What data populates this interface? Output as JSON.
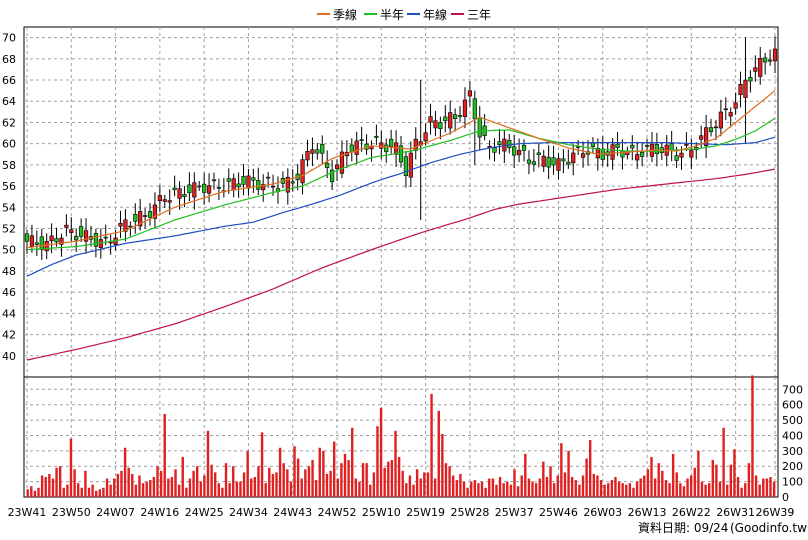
{
  "chart_data": {
    "type": "candlestick",
    "legend": [
      {
        "label": "季線",
        "color": "#e07020"
      },
      {
        "label": "半年",
        "color": "#20c020"
      },
      {
        "label": "年線",
        "color": "#2050c0"
      },
      {
        "label": "三年",
        "color": "#c01050"
      }
    ],
    "price_axis": {
      "min": 38,
      "max": 71,
      "ticks": [
        "40",
        "42",
        "44",
        "46",
        "48",
        "50",
        "52",
        "54",
        "56",
        "58",
        "60",
        "62",
        "64",
        "66",
        "68",
        "70"
      ]
    },
    "volume_axis": {
      "min": 0,
      "max": 780,
      "ticks": [
        "100",
        "200",
        "300",
        "400",
        "500",
        "600",
        "700"
      ]
    },
    "x_ticks": [
      {
        "label": "23W41",
        "week": 0
      },
      {
        "label": "23W50",
        "week": 9
      },
      {
        "label": "24W07",
        "week": 18
      },
      {
        "label": "24W16",
        "week": 27
      },
      {
        "label": "24W25",
        "week": 36
      },
      {
        "label": "24W34",
        "week": 45
      },
      {
        "label": "24W43",
        "week": 54
      },
      {
        "label": "24W52",
        "week": 63
      },
      {
        "label": "25W10",
        "week": 72
      },
      {
        "label": "25W19",
        "week": 81
      },
      {
        "label": "25W28",
        "week": 90
      },
      {
        "label": "25W37",
        "week": 99
      },
      {
        "label": "25W46",
        "week": 108
      },
      {
        "label": "26W03",
        "week": 117
      },
      {
        "label": "26W13",
        "week": 126
      },
      {
        "label": "26W22",
        "week": 135
      },
      {
        "label": "26W31",
        "week": 144
      },
      {
        "label": "26W39",
        "week": 152
      }
    ],
    "colors": {
      "up": "#e02020",
      "down": "#20c020",
      "volume": "#e02020",
      "grid": "#a0a0a0"
    },
    "close_anchors": [
      [
        0,
        50.8
      ],
      [
        4,
        50.5
      ],
      [
        8,
        51.8
      ],
      [
        12,
        51.2
      ],
      [
        16,
        50.6
      ],
      [
        20,
        52.5
      ],
      [
        24,
        53.2
      ],
      [
        28,
        55.0
      ],
      [
        32,
        55.5
      ],
      [
        36,
        56.0
      ],
      [
        40,
        56.0
      ],
      [
        44,
        56.5
      ],
      [
        48,
        56.2
      ],
      [
        52,
        56.0
      ],
      [
        55,
        57.0
      ],
      [
        58,
        60.0
      ],
      [
        62,
        57.0
      ],
      [
        65,
        59.5
      ],
      [
        68,
        60.0
      ],
      [
        72,
        60.0
      ],
      [
        75,
        59.5
      ],
      [
        77,
        57.5
      ],
      [
        79,
        60.0
      ],
      [
        82,
        62.0
      ],
      [
        84,
        62.0
      ],
      [
        87,
        62.5
      ],
      [
        90,
        64.5
      ],
      [
        92,
        61.0
      ],
      [
        94,
        59.5
      ],
      [
        96,
        60.0
      ],
      [
        99,
        59.5
      ],
      [
        102,
        58.5
      ],
      [
        105,
        58.5
      ],
      [
        108,
        58.0
      ],
      [
        111,
        59.0
      ],
      [
        114,
        59.5
      ],
      [
        117,
        59.0
      ],
      [
        120,
        59.5
      ],
      [
        123,
        59.0
      ],
      [
        126,
        59.5
      ],
      [
        129,
        59.5
      ],
      [
        132,
        59.0
      ],
      [
        135,
        59.5
      ],
      [
        138,
        61.0
      ],
      [
        140,
        62.0
      ],
      [
        142,
        63.0
      ],
      [
        144,
        64.0
      ],
      [
        146,
        66.0
      ],
      [
        148,
        67.0
      ],
      [
        150,
        68.0
      ],
      [
        152,
        68.5
      ]
    ],
    "spike_weeks": [
      {
        "week": 80,
        "high": 66.0,
        "low": 52.8
      },
      {
        "week": 91,
        "high": 65.0,
        "low": 58.0
      },
      {
        "week": 146,
        "high": 70.0,
        "low": 60.0
      }
    ],
    "ma_series": {
      "quarter": [
        [
          0,
          50.2
        ],
        [
          10,
          50.8
        ],
        [
          20,
          51.8
        ],
        [
          30,
          54.0
        ],
        [
          40,
          55.5
        ],
        [
          50,
          56.2
        ],
        [
          56,
          57.0
        ],
        [
          62,
          58.6
        ],
        [
          70,
          59.8
        ],
        [
          78,
          59.5
        ],
        [
          86,
          61.0
        ],
        [
          92,
          62.5
        ],
        [
          98,
          61.5
        ],
        [
          104,
          60.5
        ],
        [
          110,
          59.6
        ],
        [
          116,
          59.0
        ],
        [
          122,
          59.2
        ],
        [
          128,
          59.4
        ],
        [
          132,
          59.3
        ],
        [
          136,
          59.8
        ],
        [
          140,
          60.5
        ],
        [
          144,
          62.0
        ],
        [
          148,
          63.5
        ],
        [
          152,
          65.0
        ]
      ],
      "half": [
        [
          0,
          50.0
        ],
        [
          10,
          50.3
        ],
        [
          20,
          51.0
        ],
        [
          30,
          52.8
        ],
        [
          40,
          54.2
        ],
        [
          50,
          55.4
        ],
        [
          56,
          56.0
        ],
        [
          62,
          57.3
        ],
        [
          70,
          58.7
        ],
        [
          78,
          59.3
        ],
        [
          86,
          60.3
        ],
        [
          92,
          61.2
        ],
        [
          98,
          61.3
        ],
        [
          104,
          60.5
        ],
        [
          110,
          59.9
        ],
        [
          116,
          59.5
        ],
        [
          122,
          59.3
        ],
        [
          128,
          59.3
        ],
        [
          136,
          59.5
        ],
        [
          140,
          59.8
        ],
        [
          144,
          60.4
        ],
        [
          148,
          61.2
        ],
        [
          152,
          62.4
        ]
      ],
      "year": [
        [
          0,
          47.5
        ],
        [
          5,
          48.6
        ],
        [
          10,
          49.5
        ],
        [
          20,
          50.6
        ],
        [
          30,
          51.3
        ],
        [
          40,
          52.2
        ],
        [
          46,
          52.6
        ],
        [
          52,
          53.5
        ],
        [
          58,
          54.3
        ],
        [
          64,
          55.2
        ],
        [
          70,
          56.3
        ],
        [
          76,
          57.2
        ],
        [
          82,
          58.2
        ],
        [
          88,
          59.0
        ],
        [
          94,
          59.6
        ],
        [
          100,
          60.0
        ],
        [
          106,
          60.1
        ],
        [
          112,
          60.1
        ],
        [
          118,
          60.1
        ],
        [
          124,
          60.1
        ],
        [
          130,
          60.1
        ],
        [
          136,
          60.0
        ],
        [
          142,
          59.9
        ],
        [
          148,
          60.1
        ],
        [
          152,
          60.6
        ]
      ],
      "three_year": [
        [
          0,
          39.6
        ],
        [
          10,
          40.6
        ],
        [
          20,
          41.7
        ],
        [
          30,
          43.0
        ],
        [
          40,
          44.6
        ],
        [
          50,
          46.3
        ],
        [
          60,
          48.3
        ],
        [
          70,
          50.0
        ],
        [
          80,
          51.6
        ],
        [
          90,
          53.0
        ],
        [
          95,
          53.8
        ],
        [
          100,
          54.3
        ],
        [
          110,
          55.0
        ],
        [
          120,
          55.7
        ],
        [
          130,
          56.2
        ],
        [
          140,
          56.7
        ],
        [
          146,
          57.1
        ],
        [
          152,
          57.6
        ]
      ]
    },
    "volume": [
      50,
      70,
      40,
      60,
      140,
      130,
      150,
      120,
      190,
      200,
      60,
      80,
      380,
      180,
      90,
      60,
      170,
      60,
      80,
      40,
      50,
      60,
      120,
      80,
      120,
      150,
      170,
      320,
      190,
      150,
      80,
      140,
      90,
      100,
      110,
      130,
      200,
      170,
      540,
      120,
      130,
      180,
      80,
      260,
      60,
      120,
      170,
      200,
      100,
      140,
      430,
      210,
      160,
      90,
      60,
      220,
      90,
      200,
      100,
      100,
      160,
      300,
      120,
      130,
      200,
      420,
      90,
      190,
      150,
      160,
      320,
      220,
      180,
      100,
      330,
      250,
      120,
      180,
      200,
      240,
      110,
      320,
      300,
      150,
      170,
      360,
      120,
      220,
      280,
      240,
      450,
      120,
      100,
      220,
      220,
      80,
      160,
      460,
      580,
      190,
      230,
      240,
      430,
      260,
      170,
      90,
      140,
      80,
      180,
      120,
      160,
      160,
      670,
      120,
      560,
      410,
      220,
      200,
      140,
      110,
      150,
      100,
      60,
      100,
      110,
      90,
      100,
      60,
      120,
      120,
      80,
      130,
      90,
      100,
      80,
      180,
      70,
      140,
      280,
      120,
      100,
      90,
      120,
      230,
      130,
      200,
      90,
      140,
      350,
      160,
      300,
      130,
      110,
      80,
      140,
      250,
      370,
      150,
      140,
      110,
      80,
      90,
      110,
      130,
      100,
      90,
      80,
      90,
      60,
      100,
      120,
      140,
      180,
      260,
      120,
      220,
      170,
      110,
      90,
      280,
      160,
      90,
      70,
      120,
      140,
      190,
      300,
      100,
      80,
      90,
      240,
      210,
      100,
      450,
      80,
      210,
      310,
      130,
      60,
      90,
      220,
      790,
      140,
      80,
      120,
      120,
      130,
      100
    ],
    "footer": "資料日期: 09/24",
    "source": "(Goodinfo.tw)"
  }
}
